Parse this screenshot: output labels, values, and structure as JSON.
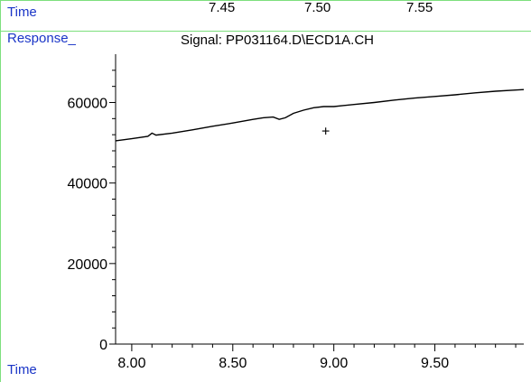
{
  "header": {
    "time_label": "Time",
    "response_label": "Response_",
    "signal_title": "Signal: PP031164.D\\ECD1A.CH",
    "top_time_ticks": [
      "7.45",
      "7.50",
      "7.55"
    ]
  },
  "footer": {
    "time_label": "Time"
  },
  "colors": {
    "label_blue": "#1a35c7",
    "frame_green": "#7ddf7d",
    "trace": "#000000"
  },
  "chart_data": {
    "type": "line",
    "title": "Signal: PP031164.D\\ECD1A.CH",
    "xlabel": "Time",
    "ylabel": "Response_",
    "xlim": [
      7.92,
      9.94
    ],
    "ylim": [
      0,
      72000
    ],
    "x_ticks": [
      8.0,
      8.5,
      9.0,
      9.5
    ],
    "x_tick_labels": [
      "8.00",
      "8.50",
      "9.00",
      "9.50"
    ],
    "y_ticks": [
      0,
      20000,
      40000,
      60000
    ],
    "y_tick_labels": [
      "0",
      "20000",
      "40000",
      "60000"
    ],
    "grid": false,
    "series": [
      {
        "x": [
          7.92,
          8.0,
          8.08,
          8.1,
          8.12,
          8.2,
          8.3,
          8.4,
          8.5,
          8.6,
          8.65,
          8.7,
          8.73,
          8.76,
          8.8,
          8.85,
          8.9,
          8.95,
          9.0,
          9.1,
          9.2,
          9.3,
          9.4,
          9.5,
          9.6,
          9.7,
          9.8,
          9.9,
          9.94
        ],
        "y": [
          50500,
          51000,
          51600,
          52400,
          51900,
          52400,
          53200,
          54100,
          54900,
          55800,
          56200,
          56400,
          55800,
          56200,
          57300,
          58100,
          58700,
          59000,
          59000,
          59500,
          60000,
          60600,
          61100,
          61500,
          61900,
          62400,
          62800,
          63100,
          63200
        ]
      }
    ],
    "annotations": [
      {
        "x": 8.96,
        "y": 53000,
        "text": "+"
      }
    ]
  }
}
